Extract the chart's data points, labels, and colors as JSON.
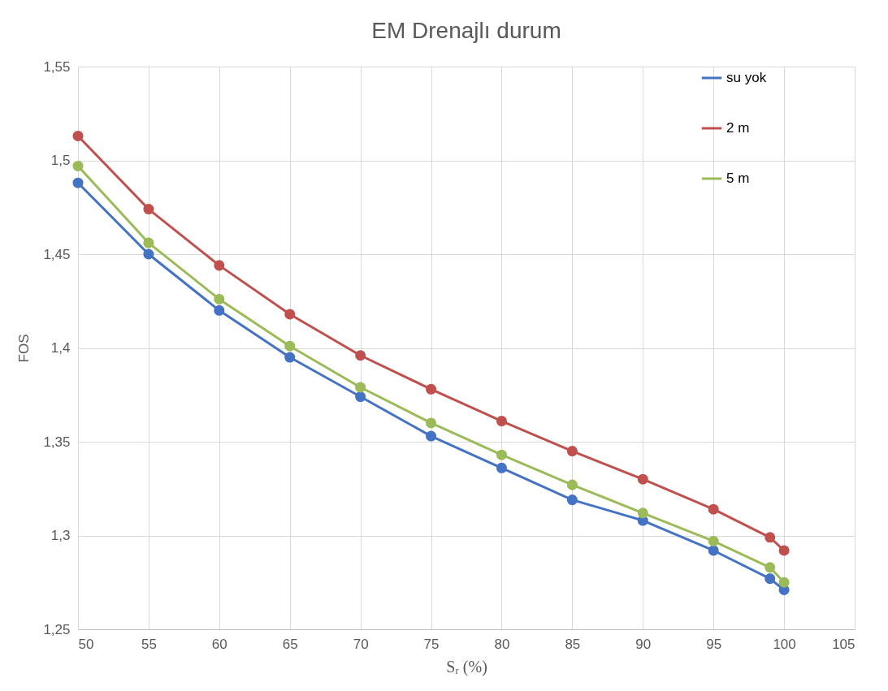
{
  "chart_data": {
    "type": "line",
    "title": "EM Drenajlı durum",
    "xlabel": "Sᵣ (%)",
    "ylabel": "FOS",
    "x": [
      50,
      55,
      60,
      65,
      70,
      75,
      80,
      85,
      90,
      95,
      99,
      100
    ],
    "series": [
      {
        "name": "su yok",
        "color": "#4472c4",
        "values": [
          1.488,
          1.45,
          1.42,
          1.395,
          1.374,
          1.353,
          1.336,
          1.319,
          1.308,
          1.292,
          1.277,
          1.271
        ]
      },
      {
        "name": "2 m",
        "color": "#c0504d",
        "values": [
          1.513,
          1.474,
          1.444,
          1.418,
          1.396,
          1.378,
          1.361,
          1.345,
          1.33,
          1.314,
          1.299,
          1.292
        ]
      },
      {
        "name": "5 m",
        "color": "#9bbb59",
        "values": [
          1.497,
          1.456,
          1.426,
          1.401,
          1.379,
          1.36,
          1.343,
          1.327,
          1.312,
          1.297,
          1.283,
          1.275
        ]
      }
    ],
    "xlim": [
      50,
      105
    ],
    "xticks": [
      50,
      55,
      60,
      65,
      70,
      75,
      80,
      85,
      90,
      95,
      100,
      105
    ],
    "ylim": [
      1.25,
      1.55
    ],
    "yticks": [
      {
        "value": 1.25,
        "label": "1,25"
      },
      {
        "value": 1.3,
        "label": "1,3"
      },
      {
        "value": 1.35,
        "label": "1,35"
      },
      {
        "value": 1.4,
        "label": "1,4"
      },
      {
        "value": 1.45,
        "label": "1,45"
      },
      {
        "value": 1.5,
        "label": "1,5"
      },
      {
        "value": 1.55,
        "label": "1,55"
      }
    ],
    "grid": true,
    "legend": "right",
    "marker": "circle",
    "line_style": "solid"
  }
}
